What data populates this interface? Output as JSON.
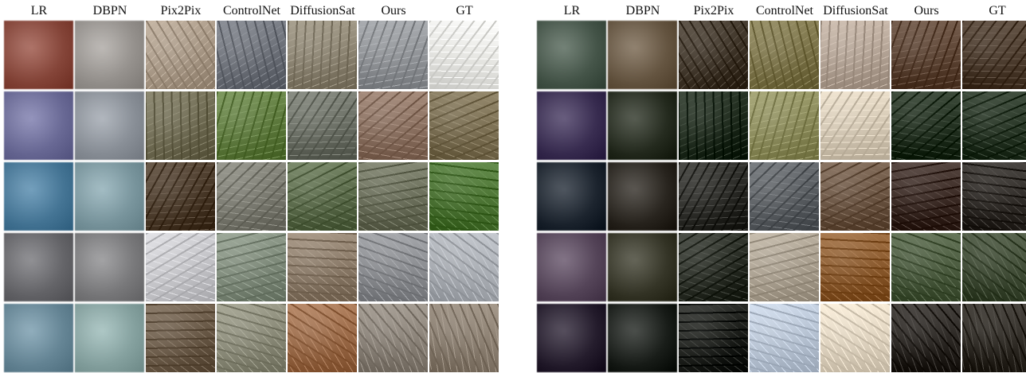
{
  "figure": {
    "panels": [
      {
        "id": "left",
        "headers": [
          "LR",
          "DBPN",
          "Pix2Pix",
          "ControlNet",
          "DiffusionSat",
          "Ours",
          "GT"
        ],
        "rows": [
          [
            "#8a4a3e",
            "#9a9692",
            "#a89886",
            "#6c7078",
            "#8a8270",
            "#8f9296",
            "#e6e6e2"
          ],
          [
            "#6e6e9a",
            "#8e949c",
            "#6e6a52",
            "#5e7a3e",
            "#6a6e64",
            "#8a7060",
            "#7a6e52"
          ],
          [
            "#4a7a9a",
            "#7e9aa2",
            "#4a3a2a",
            "#7a7a70",
            "#5a6a4a",
            "#6a6e5a",
            "#4a7232"
          ],
          [
            "#6a6a6e",
            "#7e7e80",
            "#c6c6ca",
            "#7e8a7a",
            "#8a7a68",
            "#8a8c90",
            "#aaaeb4"
          ],
          [
            "#6a8a9a",
            "#8aa6a4",
            "#6a5a48",
            "#8a8a78",
            "#9a6a48",
            "#8a8278",
            "#8a7e70"
          ]
        ]
      },
      {
        "id": "right",
        "headers": [
          "LR",
          "DBPN",
          "Pix2Pix",
          "ControlNet",
          "DiffusionSat",
          "Ours",
          "GT"
        ],
        "rows": [
          [
            "#4a5a4e",
            "#6a5a46",
            "#3e3428",
            "#7a7248",
            "#b2a294",
            "#5a4232",
            "#4a3a2c"
          ],
          [
            "#3e3256",
            "#2a3024",
            "#1e2a1c",
            "#8a8a5a",
            "#d4c8b4",
            "#223020",
            "#263424"
          ],
          [
            "#222a34",
            "#2e2a24",
            "#2a2a26",
            "#5a5e62",
            "#6a5442",
            "#3a2a24",
            "#2e2a26"
          ],
          [
            "#5a4a5e",
            "#3a3a2c",
            "#2a2e26",
            "#aaa090",
            "#8a5a2e",
            "#4a5a3e",
            "#3e4a34"
          ],
          [
            "#2a2232",
            "#1e221e",
            "#1e201c",
            "#b8c4d4",
            "#e0d4c0",
            "#2a2622",
            "#2e2a24"
          ]
        ]
      }
    ]
  }
}
